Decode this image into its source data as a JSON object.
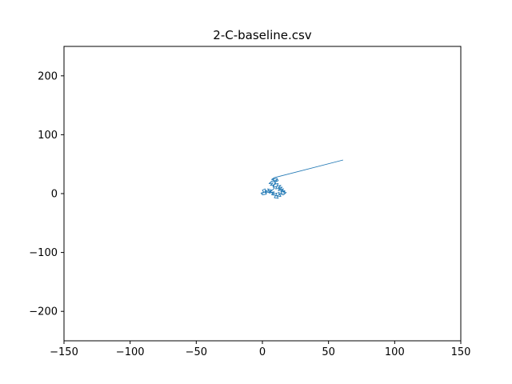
{
  "chart_data": {
    "type": "line",
    "title": "2-C-baseline.csv",
    "xlabel": "",
    "ylabel": "",
    "xlim": [
      -150,
      150
    ],
    "ylim": [
      -250,
      250
    ],
    "xticks": [
      -150,
      -100,
      -50,
      0,
      50,
      100,
      150
    ],
    "xtick_labels": [
      "−150",
      "−100",
      "−50",
      "0",
      "50",
      "100",
      "150"
    ],
    "yticks": [
      -200,
      -100,
      0,
      100,
      200
    ],
    "ytick_labels": [
      "−200",
      "−100",
      "0",
      "100",
      "200"
    ],
    "grid": false,
    "legend": false,
    "series": [
      {
        "color": "#1f77b4",
        "points": [
          [
            0,
            0
          ],
          [
            1,
            3
          ],
          [
            3,
            1
          ],
          [
            2,
            5
          ],
          [
            5,
            4
          ],
          [
            4,
            8
          ],
          [
            7,
            6
          ],
          [
            6,
            2
          ],
          [
            9,
            3
          ],
          [
            8,
            -1
          ],
          [
            11,
            1
          ],
          [
            10,
            -4
          ],
          [
            13,
            -2
          ],
          [
            12,
            2
          ],
          [
            15,
            0
          ],
          [
            14,
            4
          ],
          [
            17,
            3
          ],
          [
            15,
            6
          ],
          [
            12,
            5
          ],
          [
            13,
            9
          ],
          [
            10,
            8
          ],
          [
            11,
            12
          ],
          [
            8,
            11
          ],
          [
            9,
            15
          ],
          [
            6,
            14
          ],
          [
            8,
            18
          ],
          [
            5,
            17
          ],
          [
            7,
            21
          ],
          [
            10,
            20
          ],
          [
            9,
            16
          ],
          [
            12,
            17
          ],
          [
            11,
            13
          ],
          [
            14,
            14
          ],
          [
            12,
            10
          ],
          [
            15,
            11
          ],
          [
            13,
            7
          ],
          [
            16,
            8
          ],
          [
            14,
            4
          ],
          [
            17,
            5
          ],
          [
            16,
            1
          ],
          [
            18,
            2
          ],
          [
            16,
            -2
          ],
          [
            13,
            -1
          ],
          [
            14,
            -5
          ],
          [
            11,
            -4
          ],
          [
            12,
            -8
          ],
          [
            9,
            -7
          ],
          [
            10,
            -3
          ],
          [
            7,
            -2
          ],
          [
            8,
            2
          ],
          [
            5,
            1
          ],
          [
            6,
            5
          ],
          [
            3,
            4
          ],
          [
            2,
            8
          ],
          [
            0,
            6
          ],
          [
            1,
            2
          ],
          [
            -1,
            1
          ],
          [
            0,
            -2
          ],
          [
            3,
            -1
          ],
          [
            2,
            3
          ],
          [
            5,
            2
          ],
          [
            7,
            5
          ],
          [
            9,
            9
          ],
          [
            8,
            13
          ],
          [
            10,
            17
          ],
          [
            9,
            21
          ],
          [
            11,
            24
          ],
          [
            10,
            20
          ],
          [
            12,
            22
          ],
          [
            11,
            26
          ],
          [
            8,
            25
          ],
          [
            9,
            22
          ],
          [
            7,
            24
          ],
          [
            9,
            27
          ],
          [
            61,
            57
          ]
        ]
      }
    ]
  }
}
